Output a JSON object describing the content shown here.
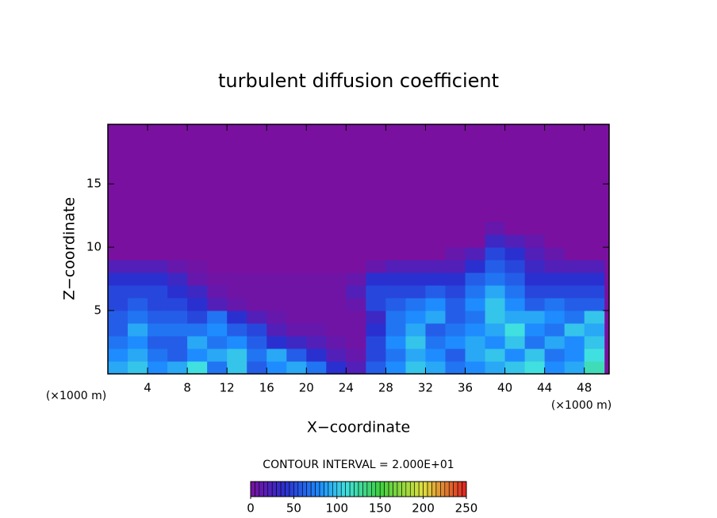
{
  "chart_data": {
    "type": "heatmap",
    "title": "turbulent diffusion coefficient",
    "xlabel": "X−coordinate",
    "ylabel": "Z−coordinate",
    "x_unit_label": "(×1000 m)",
    "x_unit_label_right": "(×1000 m)",
    "contour_label": "CONTOUR INTERVAL = 2.000E+01",
    "xlim": [
      0,
      50.5
    ],
    "ylim": [
      0,
      19.7
    ],
    "xticks": [
      4,
      8,
      12,
      16,
      20,
      24,
      28,
      32,
      36,
      40,
      44,
      48
    ],
    "yticks": [
      5,
      10,
      15
    ],
    "x": [
      1,
      3,
      5,
      7,
      9,
      11,
      13,
      15,
      17,
      19,
      21,
      23,
      25,
      27,
      29,
      31,
      33,
      35,
      37,
      39,
      41,
      43,
      45,
      47,
      49
    ],
    "y": [
      0.5,
      1.5,
      2.5,
      3.5,
      4.5,
      5.5,
      6.5,
      7.5,
      8.5,
      9.5,
      10.5,
      11.5
    ],
    "z": [
      [
        90,
        100,
        80,
        90,
        110,
        70,
        100,
        60,
        80,
        90,
        70,
        40,
        20,
        60,
        80,
        100,
        90,
        70,
        80,
        90,
        100,
        110,
        80,
        90,
        120
      ],
      [
        80,
        90,
        70,
        60,
        80,
        90,
        100,
        70,
        90,
        60,
        40,
        20,
        10,
        50,
        70,
        90,
        80,
        60,
        90,
        100,
        80,
        100,
        70,
        80,
        110
      ],
      [
        70,
        80,
        60,
        60,
        90,
        70,
        80,
        60,
        40,
        30,
        20,
        10,
        5,
        50,
        80,
        100,
        70,
        80,
        90,
        80,
        100,
        70,
        90,
        80,
        100
      ],
      [
        60,
        90,
        70,
        70,
        70,
        80,
        60,
        50,
        20,
        10,
        10,
        5,
        5,
        40,
        70,
        90,
        60,
        70,
        80,
        90,
        110,
        80,
        70,
        100,
        90
      ],
      [
        60,
        70,
        60,
        60,
        50,
        70,
        40,
        20,
        10,
        5,
        5,
        5,
        5,
        30,
        70,
        80,
        90,
        60,
        70,
        100,
        90,
        90,
        80,
        70,
        100
      ],
      [
        50,
        60,
        50,
        50,
        40,
        20,
        10,
        5,
        5,
        5,
        5,
        5,
        10,
        50,
        60,
        70,
        80,
        60,
        80,
        100,
        80,
        60,
        70,
        60,
        60
      ],
      [
        50,
        50,
        50,
        40,
        30,
        10,
        5,
        5,
        5,
        5,
        5,
        5,
        20,
        50,
        50,
        50,
        60,
        50,
        70,
        90,
        70,
        50,
        50,
        50,
        50
      ],
      [
        40,
        40,
        40,
        30,
        10,
        5,
        5,
        5,
        5,
        5,
        5,
        5,
        10,
        40,
        40,
        40,
        40,
        40,
        60,
        70,
        60,
        40,
        40,
        40,
        40
      ],
      [
        20,
        20,
        20,
        10,
        5,
        0,
        0,
        0,
        0,
        0,
        0,
        0,
        0,
        10,
        20,
        20,
        20,
        20,
        40,
        60,
        50,
        30,
        20,
        20,
        20
      ],
      [
        0,
        0,
        0,
        0,
        0,
        0,
        0,
        0,
        0,
        0,
        0,
        0,
        0,
        0,
        0,
        0,
        0,
        10,
        20,
        50,
        40,
        20,
        10,
        0,
        0
      ],
      [
        0,
        0,
        0,
        0,
        0,
        0,
        0,
        0,
        0,
        0,
        0,
        0,
        0,
        0,
        0,
        0,
        0,
        0,
        0,
        30,
        20,
        10,
        0,
        0,
        0
      ],
      [
        0,
        0,
        0,
        0,
        0,
        0,
        0,
        0,
        0,
        0,
        0,
        0,
        0,
        0,
        0,
        0,
        0,
        0,
        0,
        10,
        0,
        0,
        0,
        0,
        0
      ]
    ],
    "colormap": [
      {
        "value": 0,
        "color": "#7a10a0"
      },
      {
        "value": 40,
        "color": "#2a30d0"
      },
      {
        "value": 80,
        "color": "#1e8cff"
      },
      {
        "value": 110,
        "color": "#40e0e0"
      },
      {
        "value": 150,
        "color": "#40d040"
      },
      {
        "value": 200,
        "color": "#e0e040"
      },
      {
        "value": 250,
        "color": "#e02020"
      }
    ],
    "colorbar": {
      "lim": [
        0,
        250
      ],
      "ticks": [
        0,
        50,
        100,
        150,
        200,
        250
      ]
    }
  }
}
